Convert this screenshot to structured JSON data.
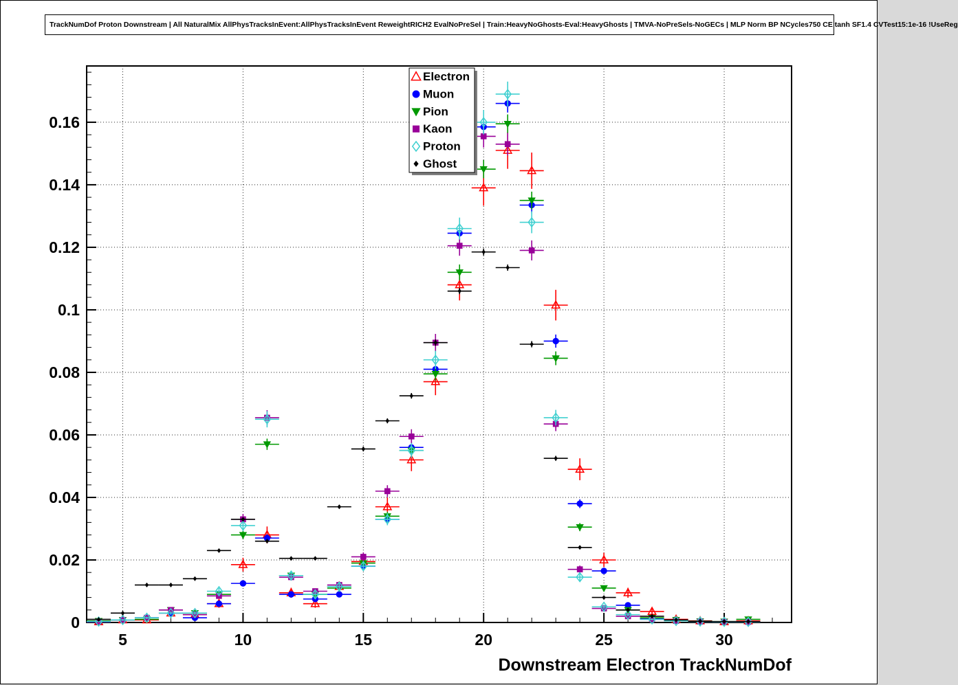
{
  "title": "TrackNumDof Proton Downstream | All NaturalMix AllPhysTracksInEvent:AllPhysTracksInEvent ReweightRICH2 EvalNoPreSel | Train:HeavyNoGhosts-Eval:HeavyGhosts | TMVA-NoPreSels-NoGECs | MLP Norm BP NCycles750 CE tanh SF1.4 CVTest15:1e-16 !UseReg",
  "chart_data": {
    "type": "scatter",
    "title": "",
    "xlabel": "Downstream Electron TrackNumDof",
    "ylabel": "",
    "xlim": [
      3.5,
      32.8
    ],
    "ylim": [
      0,
      0.178
    ],
    "xticks": [
      5,
      10,
      15,
      20,
      25,
      30
    ],
    "yticks": [
      0,
      0.02,
      0.04,
      0.06,
      0.08,
      0.1,
      0.12,
      0.14,
      0.16
    ],
    "grid": "dotted",
    "legend_position": "top-center-inside",
    "xerr_halfwidth": 0.5,
    "x": [
      4,
      5,
      6,
      7,
      8,
      9,
      10,
      11,
      12,
      13,
      14,
      15,
      16,
      17,
      18,
      19,
      20,
      21,
      22,
      23,
      24,
      25,
      26,
      27,
      28,
      29,
      30,
      31
    ],
    "series": [
      {
        "name": "Electron",
        "color": "#ff0000",
        "marker": "open-triangle-up",
        "size": 6,
        "y": [
          0.0002,
          0.0008,
          0.0008,
          0.003,
          0.0025,
          0.006,
          0.0185,
          0.028,
          0.0095,
          0.006,
          0.0115,
          0.0195,
          0.037,
          0.052,
          0.077,
          0.108,
          0.139,
          0.151,
          0.1445,
          0.1015,
          0.049,
          0.02,
          0.0095,
          0.0035,
          0.001,
          0.0005,
          0.0002,
          0.0005
        ],
        "yerr": [
          0.0002,
          0.0005,
          0.0005,
          0.0009,
          0.0008,
          0.0013,
          0.0022,
          0.0027,
          0.0016,
          0.0013,
          0.0017,
          0.0022,
          0.003,
          0.0036,
          0.0043,
          0.005,
          0.0057,
          0.0059,
          0.0058,
          0.0049,
          0.0035,
          0.0023,
          0.0016,
          0.001,
          0.0005,
          0.0004,
          0.0002,
          0.0004
        ]
      },
      {
        "name": "Muon",
        "color": "#0000ff",
        "marker": "filled-circle",
        "size": 6,
        "y": [
          0.0002,
          0.0008,
          0.0015,
          0.003,
          0.0015,
          0.006,
          0.0125,
          0.027,
          0.009,
          0.0075,
          0.009,
          0.018,
          0.033,
          0.056,
          0.081,
          0.1245,
          0.1585,
          0.166,
          0.1335,
          0.09,
          0.038,
          0.0165,
          0.0055,
          0.0012,
          0.0008,
          0.0003,
          0.0002,
          0.0002
        ],
        "yerr": [
          0.0001,
          0.0002,
          0.0003,
          0.0004,
          0.0003,
          0.0006,
          0.0008,
          0.0012,
          0.0007,
          0.0006,
          0.0007,
          0.001,
          0.0013,
          0.0017,
          0.002,
          0.0025,
          0.0028,
          0.0029,
          0.0026,
          0.0021,
          0.0014,
          0.0009,
          0.0005,
          0.0003,
          0.0002,
          0.0001,
          0.0001,
          0.0001
        ]
      },
      {
        "name": "Pion",
        "color": "#009900",
        "marker": "filled-triangle-down",
        "size": 6,
        "y": [
          0.0005,
          0.0008,
          0.001,
          0.004,
          0.003,
          0.009,
          0.028,
          0.057,
          0.015,
          0.009,
          0.011,
          0.019,
          0.034,
          0.055,
          0.0795,
          0.112,
          0.145,
          0.1595,
          0.135,
          0.0845,
          0.0305,
          0.011,
          0.004,
          0.0015,
          0.0008,
          0.0004,
          0.0003,
          0.001
        ],
        "yerr": [
          0.0002,
          0.0002,
          0.0003,
          0.0005,
          0.0004,
          0.0007,
          0.0013,
          0.0018,
          0.0009,
          0.0007,
          0.0008,
          0.0011,
          0.0014,
          0.0018,
          0.0021,
          0.0025,
          0.0029,
          0.003,
          0.0028,
          0.0022,
          0.0013,
          0.0008,
          0.0005,
          0.0003,
          0.0002,
          0.0002,
          0.0001,
          0.0002
        ]
      },
      {
        "name": "Kaon",
        "color": "#990099",
        "marker": "filled-square",
        "size": 6,
        "y": [
          0.0003,
          0.0008,
          0.0015,
          0.004,
          0.0025,
          0.0085,
          0.033,
          0.0655,
          0.0145,
          0.01,
          0.012,
          0.021,
          0.042,
          0.0595,
          0.0895,
          0.1205,
          0.1555,
          0.153,
          0.119,
          0.0635,
          0.017,
          0.0045,
          0.002,
          0.001,
          0.0005,
          0.0003,
          0.0002,
          0.0002
        ],
        "yerr": [
          0.0002,
          0.0003,
          0.0004,
          0.0006,
          0.0005,
          0.0009,
          0.0017,
          0.0024,
          0.0011,
          0.0009,
          0.001,
          0.0014,
          0.0019,
          0.0023,
          0.0028,
          0.0032,
          0.0036,
          0.0036,
          0.0032,
          0.0023,
          0.0012,
          0.0006,
          0.0004,
          0.0003,
          0.0002,
          0.0002,
          0.0001,
          0.0001
        ]
      },
      {
        "name": "Proton",
        "color": "#40d0d0",
        "marker": "open-diamond",
        "size": 6.5,
        "y": [
          0.0003,
          0.0008,
          0.0015,
          0.003,
          0.003,
          0.01,
          0.031,
          0.065,
          0.015,
          0.009,
          0.0115,
          0.018,
          0.033,
          0.055,
          0.084,
          0.126,
          0.16,
          0.169,
          0.128,
          0.0655,
          0.0145,
          0.005,
          0.0025,
          0.001,
          0.0005,
          0.0003,
          0.0002,
          0.0002
        ],
        "yerr": [
          0.0002,
          0.0003,
          0.0004,
          0.0006,
          0.0006,
          0.001,
          0.0018,
          0.0026,
          0.0012,
          0.001,
          0.0011,
          0.0014,
          0.0019,
          0.0024,
          0.0029,
          0.0035,
          0.0039,
          0.004,
          0.0035,
          0.0025,
          0.0012,
          0.0007,
          0.0005,
          0.0003,
          0.0002,
          0.0002,
          0.0001,
          0.0001
        ]
      },
      {
        "name": "Ghost",
        "color": "#000000",
        "marker": "filled-diamond",
        "size": 3.5,
        "y": [
          0.001,
          0.003,
          0.012,
          0.012,
          0.014,
          0.023,
          0.033,
          0.026,
          0.0205,
          0.0205,
          0.037,
          0.0555,
          0.0645,
          0.0725,
          0.0895,
          0.106,
          0.1185,
          0.1135,
          0.089,
          0.0525,
          0.024,
          0.008,
          0.004,
          0.002,
          0.0008,
          0.0004,
          0.0003,
          0.0003
        ],
        "yerr": [
          0.0001,
          0.0002,
          0.0003,
          0.0003,
          0.0004,
          0.0005,
          0.0006,
          0.0005,
          0.0005,
          0.0005,
          0.0006,
          0.0008,
          0.0008,
          0.0009,
          0.001,
          0.001,
          0.0011,
          0.001,
          0.001,
          0.0008,
          0.0005,
          0.0003,
          0.0002,
          0.0002,
          0.0001,
          0.0001,
          0.0001,
          0.0001
        ]
      }
    ]
  }
}
